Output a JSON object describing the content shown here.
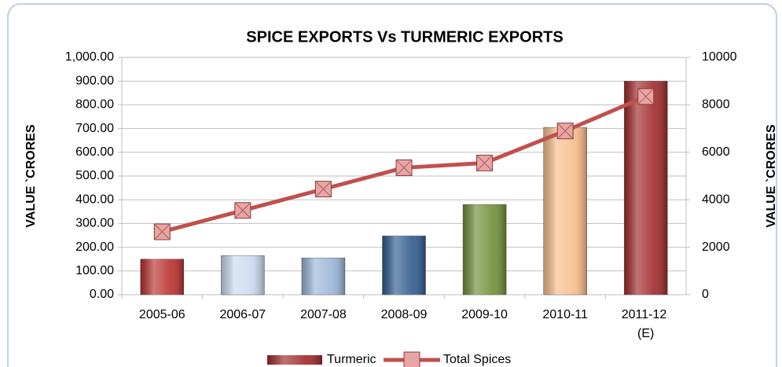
{
  "chart_data": {
    "type": "bar-line",
    "title": "SPICE EXPORTS Vs TURMERIC EXPORTS",
    "y_label": "VALUE  `CRORES",
    "y2_label": "VALUE  `CRORES",
    "categories": [
      "2005-06",
      "2006-07",
      "2007-08",
      "2008-09",
      "2009-10",
      "2010-11",
      "2011-12 (E)"
    ],
    "series": [
      {
        "name": "Turmeric",
        "type": "bar",
        "color": "#a0282a",
        "colors": [
          "#b8302e",
          "#c9daf0",
          "#9ab5d6",
          "#2f5a8c",
          "#6f8f35",
          "#f8bd8c",
          "#a0282a"
        ],
        "values": [
          150,
          165,
          155,
          248,
          380,
          705,
          900
        ]
      },
      {
        "name": "Total Spices",
        "type": "line",
        "axis": "y2",
        "color": "#c0504d",
        "values": [
          2650,
          3550,
          4450,
          5350,
          5550,
          6900,
          8350
        ]
      }
    ],
    "ylim": [
      0,
      1000
    ],
    "yticks": [
      {
        "value": 0,
        "label": "0.00"
      },
      {
        "value": 100,
        "label": "100.00"
      },
      {
        "value": 200,
        "label": "200.00"
      },
      {
        "value": 300,
        "label": "300.00"
      },
      {
        "value": 400,
        "label": "400.00"
      },
      {
        "value": 500,
        "label": "500.00"
      },
      {
        "value": 600,
        "label": "600.00"
      },
      {
        "value": 700,
        "label": "700.00"
      },
      {
        "value": 800,
        "label": "800.00"
      },
      {
        "value": 900,
        "label": "900.00"
      },
      {
        "value": 1000,
        "label": "1,000.00"
      }
    ],
    "y2lim": [
      0,
      10000
    ],
    "y2ticks": [
      0,
      2000,
      4000,
      6000,
      8000,
      10000
    ],
    "grid": true,
    "legend": "bottom"
  }
}
